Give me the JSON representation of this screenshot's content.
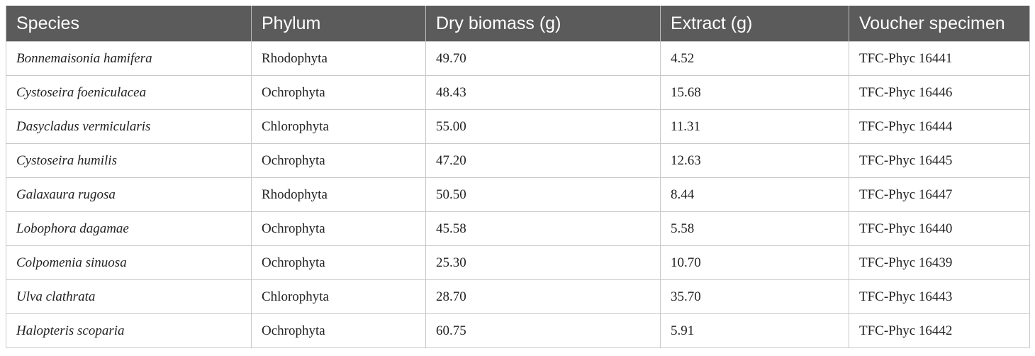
{
  "table": {
    "headers": [
      "Species",
      "Phylum",
      "Dry biomass (g)",
      "Extract (g)",
      "Voucher specimen"
    ],
    "rows": [
      [
        "Bonnemaisonia hamifera",
        "Rhodophyta",
        "49.70",
        "4.52",
        "TFC-Phyc 16441"
      ],
      [
        "Cystoseira foeniculacea",
        "Ochrophyta",
        "48.43",
        "15.68",
        "TFC-Phyc 16446"
      ],
      [
        "Dasycladus vermicularis",
        "Chlorophyta",
        "55.00",
        "11.31",
        "TFC-Phyc 16444"
      ],
      [
        "Cystoseira humilis",
        "Ochrophyta",
        "47.20",
        "12.63",
        "TFC-Phyc 16445"
      ],
      [
        "Galaxaura rugosa",
        "Rhodophyta",
        "50.50",
        "8.44",
        "TFC-Phyc 16447"
      ],
      [
        "Lobophora dagamae",
        "Ochrophyta",
        "45.58",
        "5.58",
        "TFC-Phyc 16440"
      ],
      [
        "Colpomenia sinuosa",
        "Ochrophyta",
        "25.30",
        "10.70",
        "TFC-Phyc 16439"
      ],
      [
        "Ulva clathrata",
        "Chlorophyta",
        "28.70",
        "35.70",
        "TFC-Phyc 16443"
      ],
      [
        "Halopteris scoparia",
        "Ochrophyta",
        "60.75",
        "5.91",
        "TFC-Phyc 16442"
      ]
    ]
  },
  "colors": {
    "header_background": "#5b5b5b",
    "header_text": "#ffffff",
    "grid_line": "#c8c8c8"
  }
}
